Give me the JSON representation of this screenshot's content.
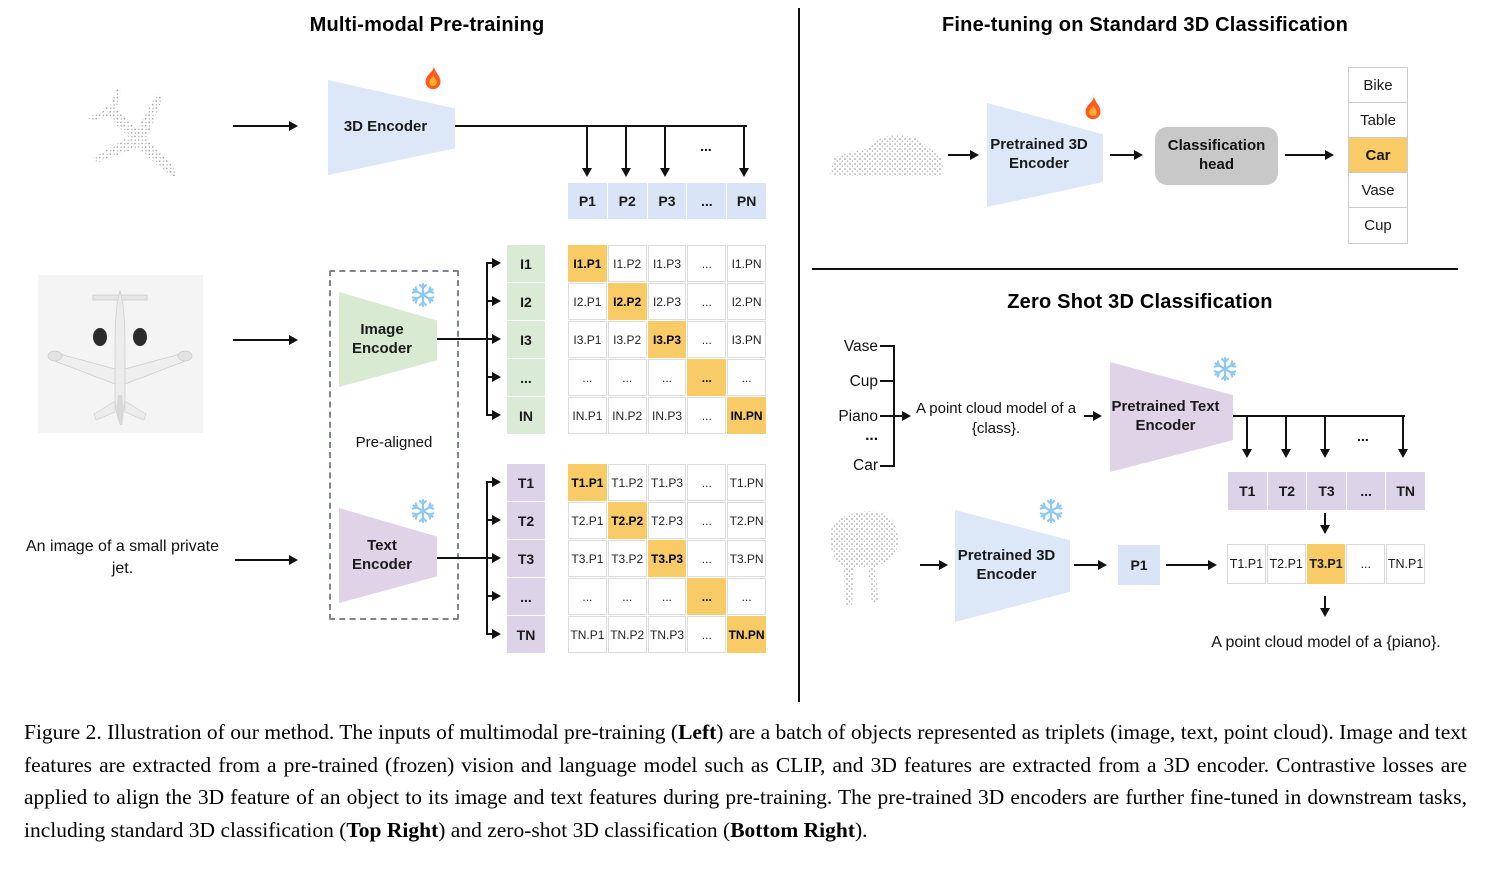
{
  "palette": {
    "highlight_orange": "#f8cb67",
    "cell_blue": "#d9e5f7",
    "cell_green": "#daebd5",
    "cell_purple": "#ddd3e9",
    "trap_blue": "#dce7f8",
    "trap_green": "#d9ead3",
    "trap_purple": "#e0d3e8",
    "head_gray": "#c8c8c8"
  },
  "icons": {
    "fire": "fire-icon",
    "snowflake": "snowflake-icon"
  },
  "left": {
    "title": "Multi-modal Pre-training",
    "encoder_3d_label": "3D Encoder",
    "image_encoder_label": "Image Encoder",
    "text_encoder_label": "Text Encoder",
    "pre_aligned": "Pre-aligned",
    "image_caption": "An image of a small private jet.",
    "dots": "...",
    "p_row": [
      "P1",
      "P2",
      "P3",
      "...",
      "PN"
    ],
    "i_labels": [
      "I1",
      "I2",
      "I3",
      "...",
      "IN"
    ],
    "i_matrix": [
      [
        "I1.P1",
        "I1.P2",
        "I1.P3",
        "...",
        "I1.PN"
      ],
      [
        "I2.P1",
        "I2.P2",
        "I2.P3",
        "...",
        "I2.PN"
      ],
      [
        "I3.P1",
        "I3.P2",
        "I3.P3",
        "...",
        "I3.PN"
      ],
      [
        "...",
        "...",
        "...",
        "...",
        "..."
      ],
      [
        "IN.P1",
        "IN.P2",
        "IN.P3",
        "...",
        "IN.PN"
      ]
    ],
    "t_labels": [
      "T1",
      "T2",
      "T3",
      "...",
      "TN"
    ],
    "t_matrix": [
      [
        "T1.P1",
        "T1.P2",
        "T1.P3",
        "...",
        "T1.PN"
      ],
      [
        "T2.P1",
        "T2.P2",
        "T2.P3",
        "...",
        "T2.PN"
      ],
      [
        "T3.P1",
        "T3.P2",
        "T3.P3",
        "...",
        "T3.PN"
      ],
      [
        "...",
        "...",
        "...",
        "...",
        "..."
      ],
      [
        "TN.P1",
        "TN.P2",
        "TN.P3",
        "...",
        "TN.PN"
      ]
    ]
  },
  "finetune": {
    "title": "Fine-tuning on Standard 3D Classification",
    "encoder_label": "Pretrained 3D Encoder",
    "head_label": "Classification head",
    "classes": [
      "Bike",
      "Table",
      "Car",
      "Vase",
      "Cup"
    ],
    "predicted_class": "Car"
  },
  "zeroshot": {
    "title": "Zero Shot 3D Classification",
    "class_list": [
      "Vase",
      "Cup",
      "Piano",
      "...",
      "Car"
    ],
    "prompt": "A point cloud model of a {class}.",
    "text_encoder_label": "Pretrained Text Encoder",
    "encoder_label": "Pretrained 3D Encoder",
    "p1": "P1",
    "dots": "...",
    "t_row": [
      "T1",
      "T2",
      "T3",
      "...",
      "TN"
    ],
    "tp_row": [
      "T1.P1",
      "T2.P1",
      "T3.P1",
      "...",
      "TN.P1"
    ],
    "predicted_index": 2,
    "result": "A point cloud model of a {piano}."
  },
  "caption": {
    "segments": [
      {
        "text": "Figure 2. Illustration of our method. The inputs of multimodal pre-training (",
        "bold": false
      },
      {
        "text": "Left",
        "bold": true
      },
      {
        "text": ") are a batch of objects represented as triplets (image, text, point cloud). Image and text features are extracted from a pre-trained (frozen) vision and language model such as CLIP, and 3D features are extracted from a 3D encoder. Contrastive losses are applied to align the 3D feature of an object to its image and text features during pre-training. The pre-trained 3D encoders are further fine-tuned in downstream tasks, including standard 3D classification (",
        "bold": false
      },
      {
        "text": "Top Right",
        "bold": true
      },
      {
        "text": ") and zero-shot 3D classification (",
        "bold": false
      },
      {
        "text": "Bottom Right",
        "bold": true
      },
      {
        "text": ").",
        "bold": false
      }
    ]
  }
}
